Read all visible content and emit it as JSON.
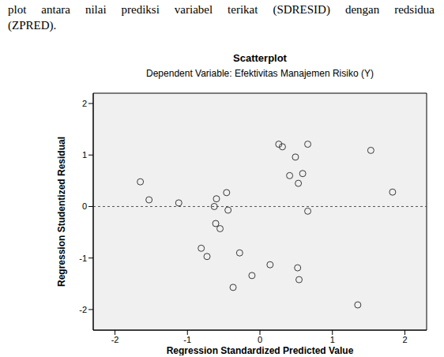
{
  "paragraph": [
    "plot antara nilai prediksi variabel terikat (SDRESID) dengan redsidua",
    "(ZPRED)."
  ],
  "chart_data": {
    "type": "scatter",
    "title": "Scatterplot",
    "subtitle": "Dependent Variable: Efektivitas Manajemen Risiko (Y)",
    "x_label": "Regression Standardized Predicted Value",
    "y_label": "Regression Studentized Residual",
    "x": [
      -1.65,
      -1.53,
      -1.12,
      -0.6,
      -0.46,
      -0.63,
      -0.44,
      -0.61,
      -0.55,
      -0.81,
      -0.73,
      -0.28,
      -0.37,
      -0.11,
      0.14,
      0.52,
      0.54,
      0.26,
      0.31,
      0.49,
      0.41,
      0.53,
      0.59,
      0.66,
      0.66,
      1.53,
      1.83,
      1.35
    ],
    "values": [
      0.48,
      0.13,
      0.07,
      0.15,
      0.27,
      0.0,
      -0.07,
      -0.33,
      -0.43,
      -0.81,
      -0.97,
      -0.9,
      -1.57,
      -1.34,
      -1.13,
      -1.19,
      -1.42,
      1.21,
      1.16,
      0.96,
      0.6,
      0.45,
      0.64,
      1.21,
      -0.09,
      1.09,
      0.28,
      -1.91
    ],
    "xlim": [
      -2.3,
      2.3
    ],
    "ylim": [
      -2.4,
      2.2
    ],
    "xticks": [
      -2,
      -1,
      0,
      1,
      2
    ],
    "yticks": [
      -2,
      -1,
      0,
      1,
      2
    ],
    "reference_line": 0,
    "grid": false,
    "color": "#3a3a3a",
    "marker": "circle_open"
  }
}
